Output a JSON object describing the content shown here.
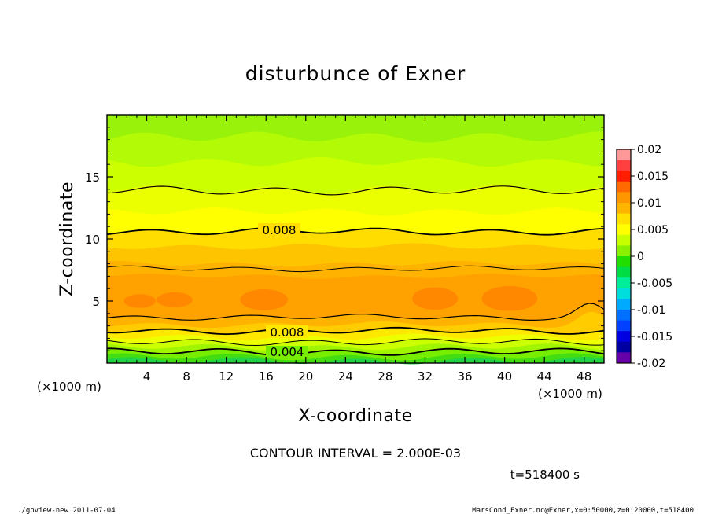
{
  "chart_data": {
    "type": "contour",
    "title": "disturbunce of Exner",
    "xlabel": "X-coordinate",
    "ylabel": "Z-coordinate",
    "x_unit_left": "(×1000 m)",
    "x_unit_right": "(×1000 m)",
    "xlim": [
      0,
      50
    ],
    "ylim": [
      0,
      20
    ],
    "xticks": [
      "4",
      "8",
      "12",
      "16",
      "20",
      "24",
      "28",
      "32",
      "36",
      "40",
      "44",
      "48"
    ],
    "yticks": [
      "5",
      "10",
      "15"
    ],
    "contour_interval_text": "CONTOUR INTERVAL = 2.000E-03",
    "time_text": "t=518400 s",
    "contour_labels": [
      "0.008",
      "0.008",
      "0.004"
    ],
    "colorbar": {
      "ticks": [
        "0.02",
        "0.015",
        "0.01",
        "0.005",
        "0",
        "-0.005",
        "-0.01",
        "-0.015",
        "-0.02"
      ],
      "colors": [
        "#ff9999",
        "#ff4040",
        "#ff1e00",
        "#ff6a00",
        "#ff9600",
        "#ffb400",
        "#ffe000",
        "#ffff00",
        "#c8ff00",
        "#88f000",
        "#22dd00",
        "#00dd44",
        "#00ee99",
        "#00dddd",
        "#00aaff",
        "#0070ff",
        "#0040ff",
        "#0000e0",
        "#0000a0",
        "#6600aa"
      ]
    },
    "layers": [
      {
        "z": 20.0,
        "value": 0.002,
        "color": "#99f20a"
      },
      {
        "z": 18.2,
        "value": 0.003,
        "color": "#b2fa06"
      },
      {
        "z": 16.2,
        "value": 0.004,
        "color": "#ccff00"
      },
      {
        "z": 14.0,
        "value": 0.005,
        "color": "#ebff00"
      },
      {
        "z": 12.2,
        "value": 0.007,
        "color": "#ffff00"
      },
      {
        "z": 10.6,
        "value": 0.008,
        "color": "#ffdd00"
      },
      {
        "z": 9.4,
        "value": 0.009,
        "color": "#ffc400"
      },
      {
        "z": 8.0,
        "value": 0.01,
        "color": "#ffb200"
      },
      {
        "z": 7.0,
        "value": 0.011,
        "color": "#ffa200"
      },
      {
        "z": 3.7,
        "value": 0.01,
        "color": "#ffb200"
      },
      {
        "z": 3.1,
        "value": 0.009,
        "color": "#ffcc00"
      },
      {
        "z": 2.6,
        "value": 0.008,
        "color": "#ffe800"
      },
      {
        "z": 2.1,
        "value": 0.007,
        "color": "#eeff00"
      },
      {
        "z": 1.7,
        "value": 0.006,
        "color": "#ccff00"
      },
      {
        "z": 1.3,
        "value": 0.005,
        "color": "#a2f500"
      },
      {
        "z": 0.9,
        "value": 0.004,
        "color": "#77ee00"
      },
      {
        "z": 0.5,
        "value": 0.003,
        "color": "#44dd11"
      },
      {
        "z": 0.2,
        "value": 0.002,
        "color": "#22d444"
      }
    ]
  },
  "footer": {
    "left": "./gpview-new   2011-07-04",
    "right": "MarsCond_Exner.nc@Exner,x=0:50000,z=0:20000,t=518400"
  }
}
